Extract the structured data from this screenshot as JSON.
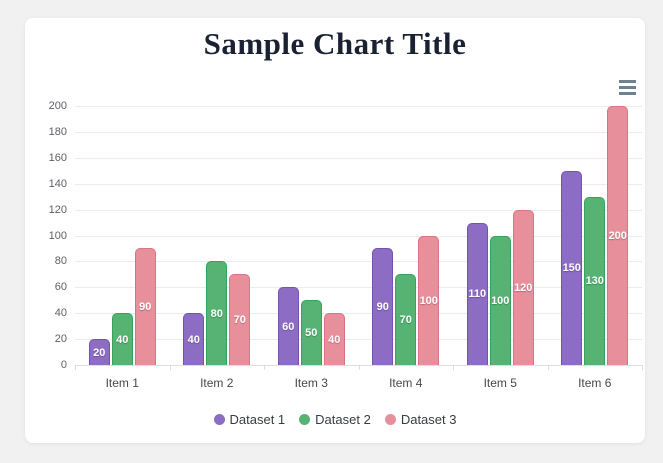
{
  "page": {
    "background_color": "#f1f1f2",
    "card_background_color": "#ffffff"
  },
  "header": {
    "title": "Sample Chart Title",
    "title_color": "#1a2133"
  },
  "toolbar": {
    "menu_icon": "hamburger-menu-icon",
    "menu_icon_color": "#6e8192"
  },
  "chart_data": {
    "type": "bar",
    "title": "Sample Chart Title",
    "categories": [
      "Item 1",
      "Item 2",
      "Item 3",
      "Item 4",
      "Item 5",
      "Item 6"
    ],
    "series": [
      {
        "name": "Dataset 1",
        "values": [
          20,
          40,
          60,
          90,
          110,
          150
        ],
        "fill": "#8d6cc4",
        "border": "#7453ae"
      },
      {
        "name": "Dataset 2",
        "values": [
          40,
          80,
          50,
          70,
          100,
          130
        ],
        "fill": "#56b374",
        "border": "#36a35b"
      },
      {
        "name": "Dataset 3",
        "values": [
          90,
          70,
          40,
          100,
          120,
          200
        ],
        "fill": "#e78f9b",
        "border": "#db7386"
      }
    ],
    "xlabel": "",
    "ylabel": "",
    "ylim": [
      0,
      200
    ],
    "yticks": [
      0,
      20,
      40,
      60,
      80,
      100,
      120,
      140,
      160,
      180,
      200
    ],
    "grid": true,
    "gridline_color": "#ececec",
    "axis_line_color": "#dedede",
    "tick_label_color": "#5c5f66",
    "category_label_color": "#45484f",
    "data_labels": true,
    "data_label_color": "#ffffff",
    "legend_position": "bottom",
    "legend_text_color": "#373d3f"
  }
}
